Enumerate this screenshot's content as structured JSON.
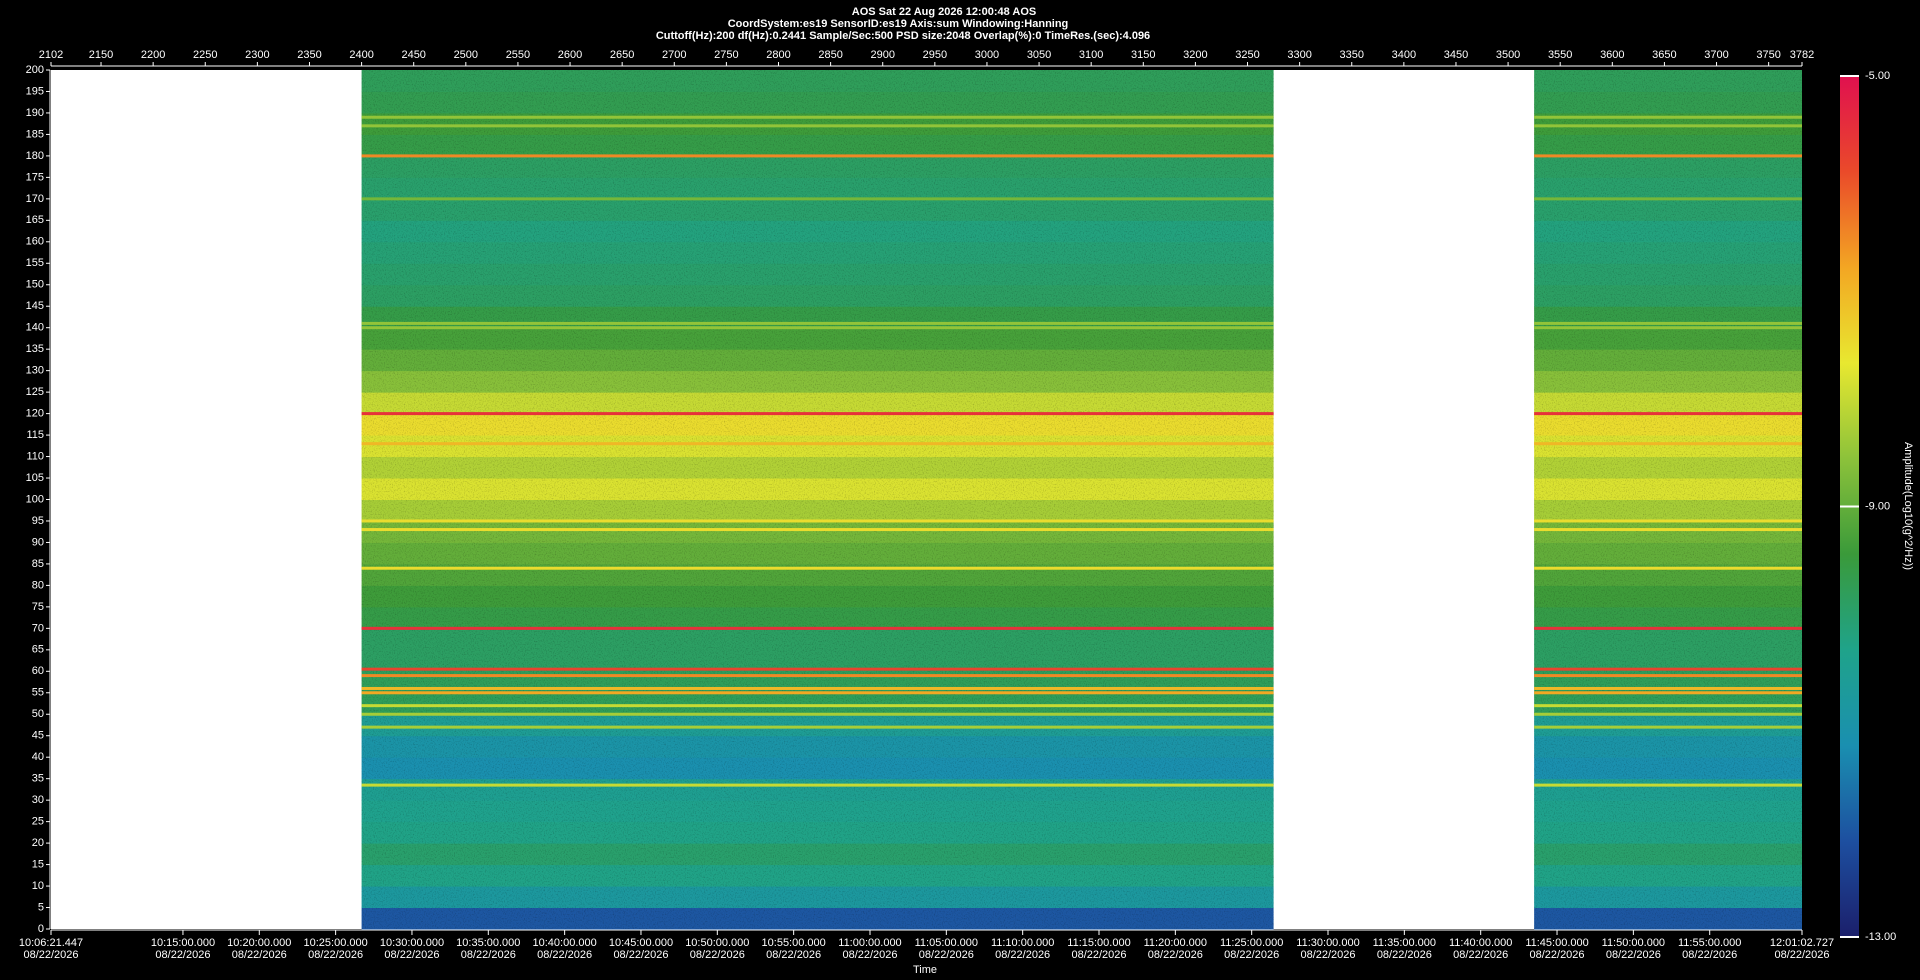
{
  "chart_data": {
    "type": "spectrogram",
    "titles": [
      "AOS  Sat 22 Aug 2026 12:00:48  AOS",
      "CoordSystem:es19   SensorID:es19    Axis:sum    Windowing:Hanning",
      "Cuttoff(Hz):200      df(Hz):0.2441      Sample/Sec:500      PSD size:2048      Overlap(%):0      TimeRes.(sec):4.096"
    ],
    "xlabel": "Time",
    "colorbar_label": "Amplitude(Log10(g^2/Hz))",
    "xlim": [
      2102,
      3782
    ],
    "xticks": [
      2102,
      2150,
      2200,
      2250,
      2300,
      2350,
      2400,
      2450,
      2500,
      2550,
      2600,
      2650,
      2700,
      2750,
      2800,
      2850,
      2900,
      2950,
      3000,
      3050,
      3100,
      3150,
      3200,
      3250,
      3300,
      3350,
      3400,
      3450,
      3500,
      3550,
      3600,
      3650,
      3700,
      3750,
      3782
    ],
    "ylim": [
      0,
      200
    ],
    "yticks": [
      0,
      5,
      10,
      15,
      20,
      25,
      30,
      35,
      40,
      45,
      50,
      55,
      60,
      65,
      70,
      75,
      80,
      85,
      90,
      95,
      100,
      105,
      110,
      115,
      120,
      125,
      130,
      135,
      140,
      145,
      150,
      155,
      160,
      165,
      170,
      175,
      180,
      185,
      190,
      195,
      200
    ],
    "time_ticks": [
      {
        "time": "10:06:21.447",
        "date": "08/22/2026"
      },
      {
        "time": "10:15:00.000",
        "date": "08/22/2026"
      },
      {
        "time": "10:20:00.000",
        "date": "08/22/2026"
      },
      {
        "time": "10:25:00.000",
        "date": "08/22/2026"
      },
      {
        "time": "10:30:00.000",
        "date": "08/22/2026"
      },
      {
        "time": "10:35:00.000",
        "date": "08/22/2026"
      },
      {
        "time": "10:40:00.000",
        "date": "08/22/2026"
      },
      {
        "time": "10:45:00.000",
        "date": "08/22/2026"
      },
      {
        "time": "10:50:00.000",
        "date": "08/22/2026"
      },
      {
        "time": "10:55:00.000",
        "date": "08/22/2026"
      },
      {
        "time": "11:00:00.000",
        "date": "08/22/2026"
      },
      {
        "time": "11:05:00.000",
        "date": "08/22/2026"
      },
      {
        "time": "11:10:00.000",
        "date": "08/22/2026"
      },
      {
        "time": "11:15:00.000",
        "date": "08/22/2026"
      },
      {
        "time": "11:20:00.000",
        "date": "08/22/2026"
      },
      {
        "time": "11:25:00.000",
        "date": "08/22/2026"
      },
      {
        "time": "11:30:00.000",
        "date": "08/22/2026"
      },
      {
        "time": "11:35:00.000",
        "date": "08/22/2026"
      },
      {
        "time": "11:40:00.000",
        "date": "08/22/2026"
      },
      {
        "time": "11:45:00.000",
        "date": "08/22/2026"
      },
      {
        "time": "11:50:00.000",
        "date": "08/22/2026"
      },
      {
        "time": "11:55:00.000",
        "date": "08/22/2026"
      },
      {
        "time": "12:01:02.727",
        "date": "08/22/2026"
      }
    ],
    "segments": [
      [
        2400,
        3275
      ],
      [
        3525,
        3782
      ]
    ],
    "freq_bins": [
      0,
      5,
      10,
      15,
      20,
      25,
      30,
      35,
      40,
      45,
      50,
      55,
      60,
      65,
      70,
      75,
      80,
      85,
      90,
      95,
      100,
      105,
      110,
      115,
      120,
      125,
      130,
      135,
      140,
      145,
      150,
      155,
      160,
      165,
      170,
      175,
      180,
      185,
      190,
      195,
      200
    ],
    "amplitude": [
      -12,
      -10.8,
      -10.3,
      -10,
      -10.3,
      -10.4,
      -10.5,
      -11.2,
      -11,
      -10.6,
      -9.8,
      -9.8,
      -9.9,
      -9.9,
      -9.6,
      -9.4,
      -9.2,
      -9,
      -8.8,
      -8.3,
      -7.8,
      -8.2,
      -7.8,
      -7.5,
      -8,
      -8.6,
      -9,
      -9.3,
      -9.6,
      -9.9,
      -10,
      -10.1,
      -10.2,
      -10,
      -10,
      -9.9,
      -9.6,
      -9.4,
      -9.7,
      -9.8
    ],
    "lines": [
      {
        "freq": 180,
        "amplitude": -6.5
      },
      {
        "freq": 120,
        "amplitude": -5.5
      },
      {
        "freq": 113,
        "amplitude": -7
      },
      {
        "freq": 95,
        "amplitude": -7.5
      },
      {
        "freq": 93,
        "amplitude": -7.5
      },
      {
        "freq": 84,
        "amplitude": -7.5
      },
      {
        "freq": 70,
        "amplitude": -5.5
      },
      {
        "freq": 60.5,
        "amplitude": -5.8
      },
      {
        "freq": 59,
        "amplitude": -6.5
      },
      {
        "freq": 56,
        "amplitude": -7
      },
      {
        "freq": 55,
        "amplitude": -6.8
      },
      {
        "freq": 52,
        "amplitude": -8
      },
      {
        "freq": 50,
        "amplitude": -8.3
      },
      {
        "freq": 47,
        "amplitude": -8.3
      },
      {
        "freq": 33.5,
        "amplitude": -8
      },
      {
        "freq": 141,
        "amplitude": -8.5
      },
      {
        "freq": 140,
        "amplitude": -8.5
      },
      {
        "freq": 189,
        "amplitude": -8.5
      },
      {
        "freq": 187,
        "amplitude": -8.5
      },
      {
        "freq": 170,
        "amplitude": -8.8
      }
    ],
    "clim": [
      -13,
      -5
    ],
    "cticks": [
      {
        "value": -5,
        "label": "-5.00"
      },
      {
        "value": -9,
        "label": "-9.00"
      },
      {
        "value": -13,
        "label": "-13.00"
      }
    ],
    "colormap": [
      "#1b1f6b",
      "#1d4fa0",
      "#1a8fb0",
      "#1fa38a",
      "#3a9a3a",
      "#8cc23a",
      "#e8e830",
      "#f3a623",
      "#ea4a2a",
      "#e0104f"
    ]
  }
}
